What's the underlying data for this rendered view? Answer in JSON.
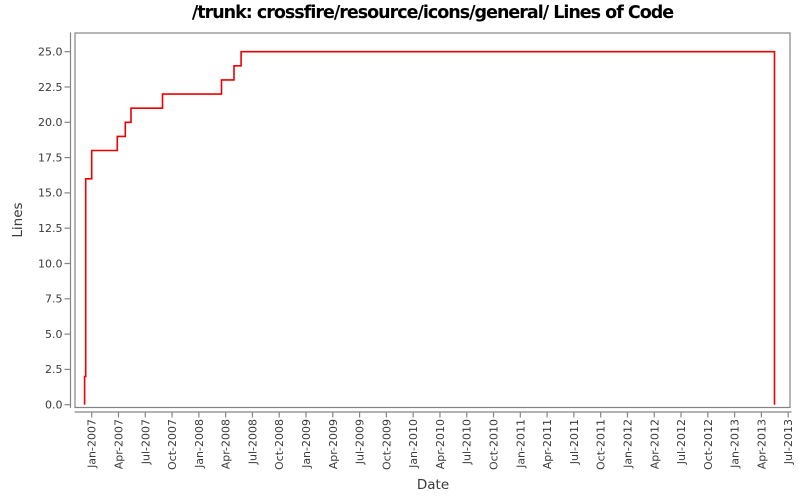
{
  "chart_data": {
    "type": "line",
    "subtype": "step-post",
    "title": "/trunk: crossfire/resource/icons/general/ Lines of Code",
    "xlabel": "Date",
    "ylabel": "Lines",
    "line_color": "#ee0000",
    "axis_color": "#858585",
    "tick_label_color": "#3a3a3a",
    "grid": false,
    "legend": false,
    "ylim": [
      0,
      25
    ],
    "y_ticks": [
      0,
      2.5,
      5,
      7.5,
      10,
      12.5,
      15,
      17.5,
      20,
      22.5,
      25
    ],
    "y_tick_labels": [
      "0.0",
      "2.5",
      "5.0",
      "7.5",
      "10.0",
      "12.5",
      "15.0",
      "17.5",
      "20.0",
      "22.5",
      "25.0"
    ],
    "x_tick_labels": [
      "Jan-2007",
      "Apr-2007",
      "Jul-2007",
      "Oct-2007",
      "Jan-2008",
      "Apr-2008",
      "Jul-2008",
      "Oct-2008",
      "Jan-2009",
      "Apr-2009",
      "Jul-2009",
      "Oct-2009",
      "Jan-2010",
      "Apr-2010",
      "Jul-2010",
      "Oct-2010",
      "Jan-2011",
      "Apr-2011",
      "Jul-2011",
      "Oct-2011",
      "Jan-2012",
      "Apr-2012",
      "Jul-2012",
      "Oct-2012",
      "Jan-2013",
      "Apr-2013",
      "Jul-2013"
    ],
    "x_tick_interval_months": 3,
    "points": [
      {
        "date": "2006-12-07",
        "lines": 0
      },
      {
        "date": "2006-12-07",
        "lines": 2
      },
      {
        "date": "2006-12-11",
        "lines": 16
      },
      {
        "date": "2007-01-01",
        "lines": 18
      },
      {
        "date": "2007-03-27",
        "lines": 19
      },
      {
        "date": "2007-04-24",
        "lines": 20
      },
      {
        "date": "2007-05-13",
        "lines": 21
      },
      {
        "date": "2007-08-29",
        "lines": 22
      },
      {
        "date": "2008-03-17",
        "lines": 23
      },
      {
        "date": "2008-04-29",
        "lines": 24
      },
      {
        "date": "2008-05-23",
        "lines": 25
      },
      {
        "date": "2013-05-15",
        "lines": 0
      }
    ]
  }
}
